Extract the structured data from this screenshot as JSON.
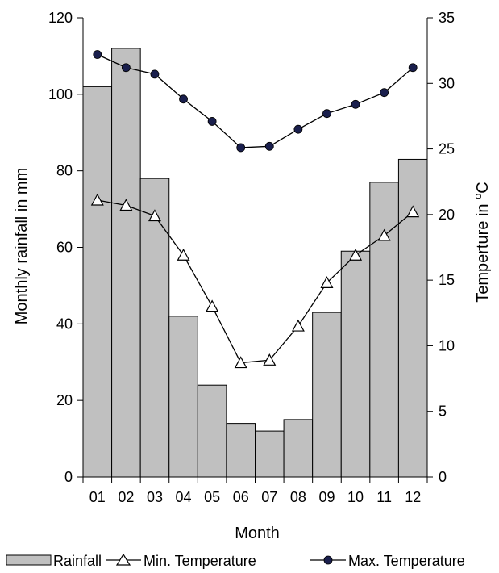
{
  "chart_data": {
    "type": "bar",
    "categories": [
      "01",
      "02",
      "03",
      "04",
      "05",
      "06",
      "07",
      "08",
      "09",
      "10",
      "11",
      "12"
    ],
    "xlabel": "Month",
    "ylabel": "Monthly rainfall in mm",
    "y2label_main": "Temperture in ",
    "y2label_sup": "o",
    "y2label_end": "C",
    "ylim": [
      0,
      120
    ],
    "y2lim": [
      0,
      35
    ],
    "yticks": [
      "0",
      "20",
      "40",
      "60",
      "80",
      "100",
      "120"
    ],
    "y2ticks": [
      "0",
      "5",
      "10",
      "15",
      "20",
      "25",
      "30",
      "35"
    ],
    "grid": false,
    "legend_position": "bottom",
    "series": [
      {
        "name": "Rainfall",
        "kind": "bar",
        "axis": "left",
        "color": "#c0c0c0",
        "values": [
          102,
          112,
          78,
          42,
          24,
          14,
          12,
          15,
          43,
          59,
          77,
          83
        ]
      },
      {
        "name": "Min. Temperature",
        "kind": "line",
        "axis": "right",
        "marker": "triangle-open",
        "values": [
          21.1,
          20.7,
          19.9,
          16.9,
          13.0,
          8.7,
          8.9,
          11.5,
          14.8,
          16.9,
          18.4,
          20.2
        ]
      },
      {
        "name": "Max. Temperature",
        "kind": "line",
        "axis": "right",
        "marker": "circle-filled",
        "color": "#1a1f4d",
        "values": [
          32.2,
          31.2,
          30.7,
          28.8,
          27.1,
          25.1,
          25.2,
          26.5,
          27.7,
          28.4,
          29.3,
          31.2
        ]
      }
    ]
  }
}
